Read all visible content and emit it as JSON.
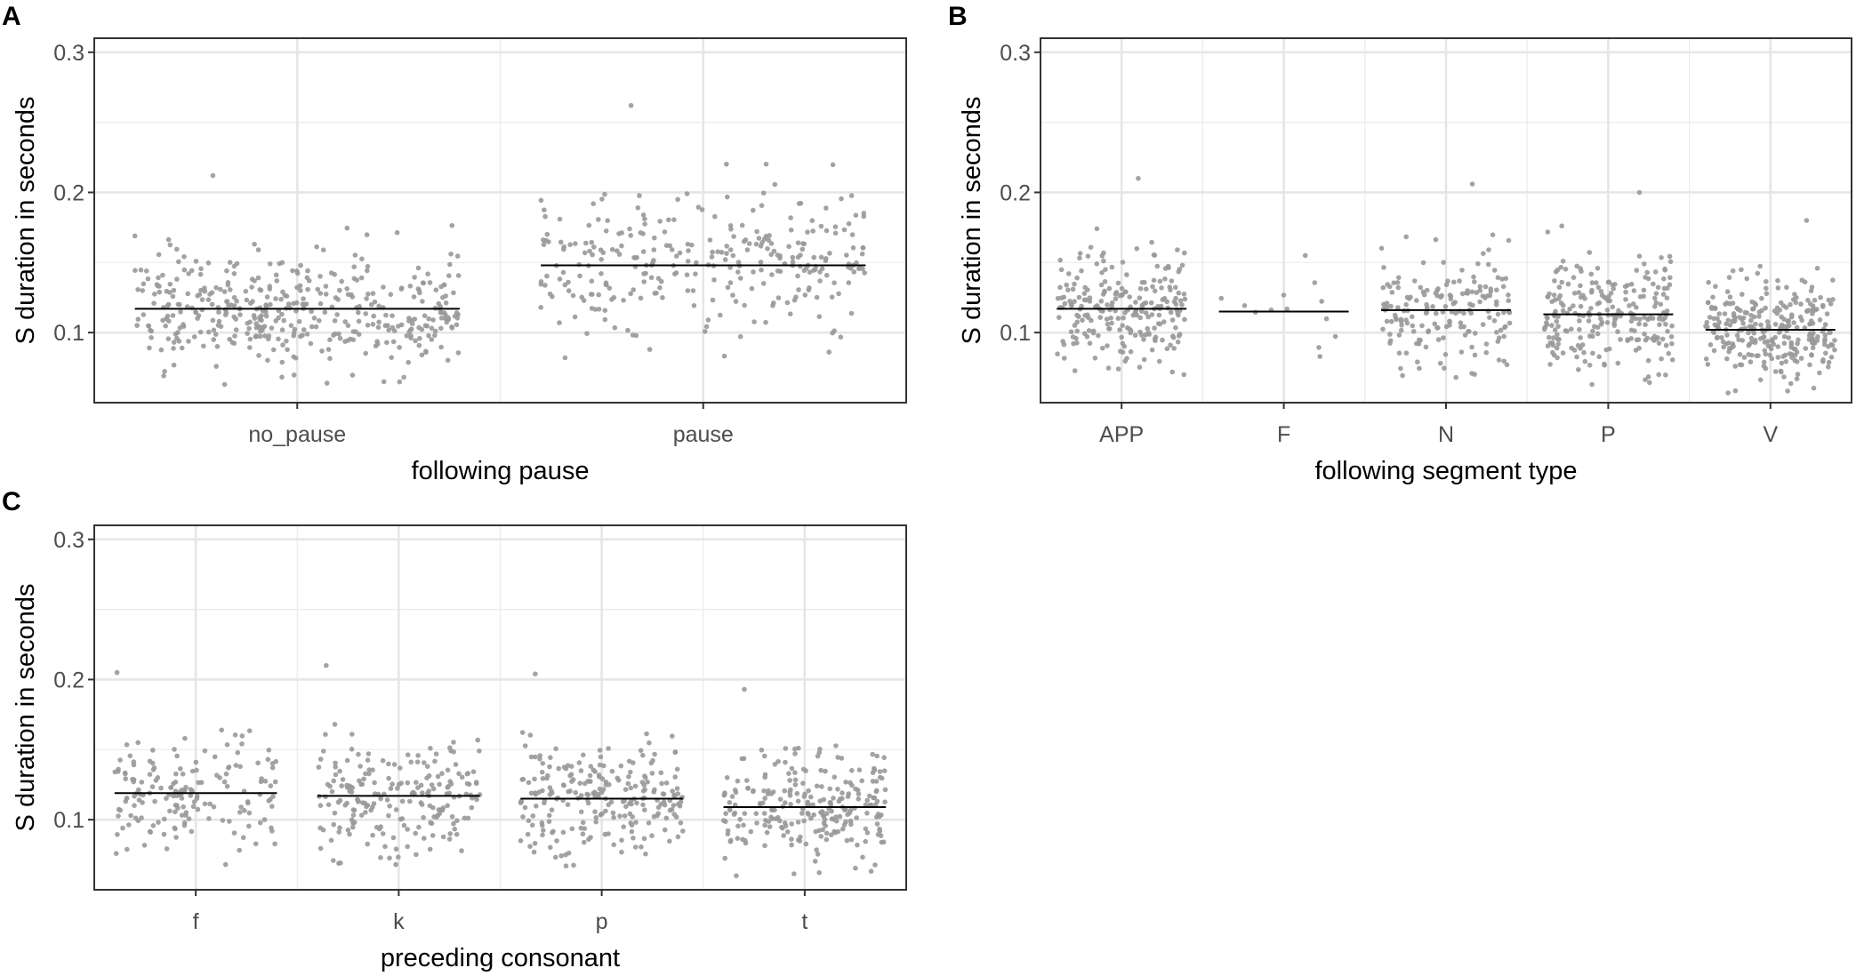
{
  "figure": {
    "panels": [
      "A",
      "B",
      "C"
    ]
  },
  "chart_data": [
    {
      "panel": "A",
      "type": "scatter",
      "subtype": "jittered strip plot with mean line",
      "xlabel": "following pause",
      "ylabel": "S duration in seconds",
      "categories": [
        "no_pause",
        "pause"
      ],
      "means": [
        0.117,
        0.148
      ],
      "spread": [
        {
          "min": 0.063,
          "max": 0.212,
          "n": 430
        },
        {
          "min": 0.082,
          "max": 0.262,
          "n": 300
        }
      ],
      "ylim": [
        0.05,
        0.31
      ],
      "yticks": [
        0.1,
        0.2,
        0.3
      ],
      "ytick_labels": [
        "0.1",
        "0.2",
        "0.3"
      ],
      "point_color": "#999999",
      "line_color": "#000000"
    },
    {
      "panel": "B",
      "type": "scatter",
      "subtype": "jittered strip plot with mean line",
      "xlabel": "following segment type",
      "ylabel": "S duration in seconds",
      "categories": [
        "APP",
        "F",
        "N",
        "P",
        "V"
      ],
      "means": [
        0.117,
        0.115,
        0.116,
        0.113,
        0.102
      ],
      "spread": [
        {
          "min": 0.07,
          "max": 0.21,
          "n": 230
        },
        {
          "min": 0.083,
          "max": 0.155,
          "n": 13
        },
        {
          "min": 0.068,
          "max": 0.206,
          "n": 180
        },
        {
          "min": 0.063,
          "max": 0.2,
          "n": 240
        },
        {
          "min": 0.057,
          "max": 0.18,
          "n": 290
        }
      ],
      "ylim": [
        0.05,
        0.31
      ],
      "yticks": [
        0.1,
        0.2,
        0.3
      ],
      "ytick_labels": [
        "0.1",
        "0.2",
        "0.3"
      ],
      "point_color": "#999999",
      "line_color": "#000000"
    },
    {
      "panel": "C",
      "type": "scatter",
      "subtype": "jittered strip plot with mean line",
      "xlabel": "preceding consonant",
      "ylabel": "S duration in seconds",
      "categories": [
        "f",
        "k",
        "p",
        "t"
      ],
      "means": [
        0.119,
        0.117,
        0.115,
        0.109
      ],
      "spread": [
        {
          "min": 0.068,
          "max": 0.205,
          "n": 170
        },
        {
          "min": 0.068,
          "max": 0.21,
          "n": 210
        },
        {
          "min": 0.067,
          "max": 0.204,
          "n": 240
        },
        {
          "min": 0.06,
          "max": 0.193,
          "n": 250
        }
      ],
      "ylim": [
        0.05,
        0.31
      ],
      "yticks": [
        0.1,
        0.2,
        0.3
      ],
      "ytick_labels": [
        "0.1",
        "0.2",
        "0.3"
      ],
      "point_color": "#999999",
      "line_color": "#000000"
    }
  ]
}
